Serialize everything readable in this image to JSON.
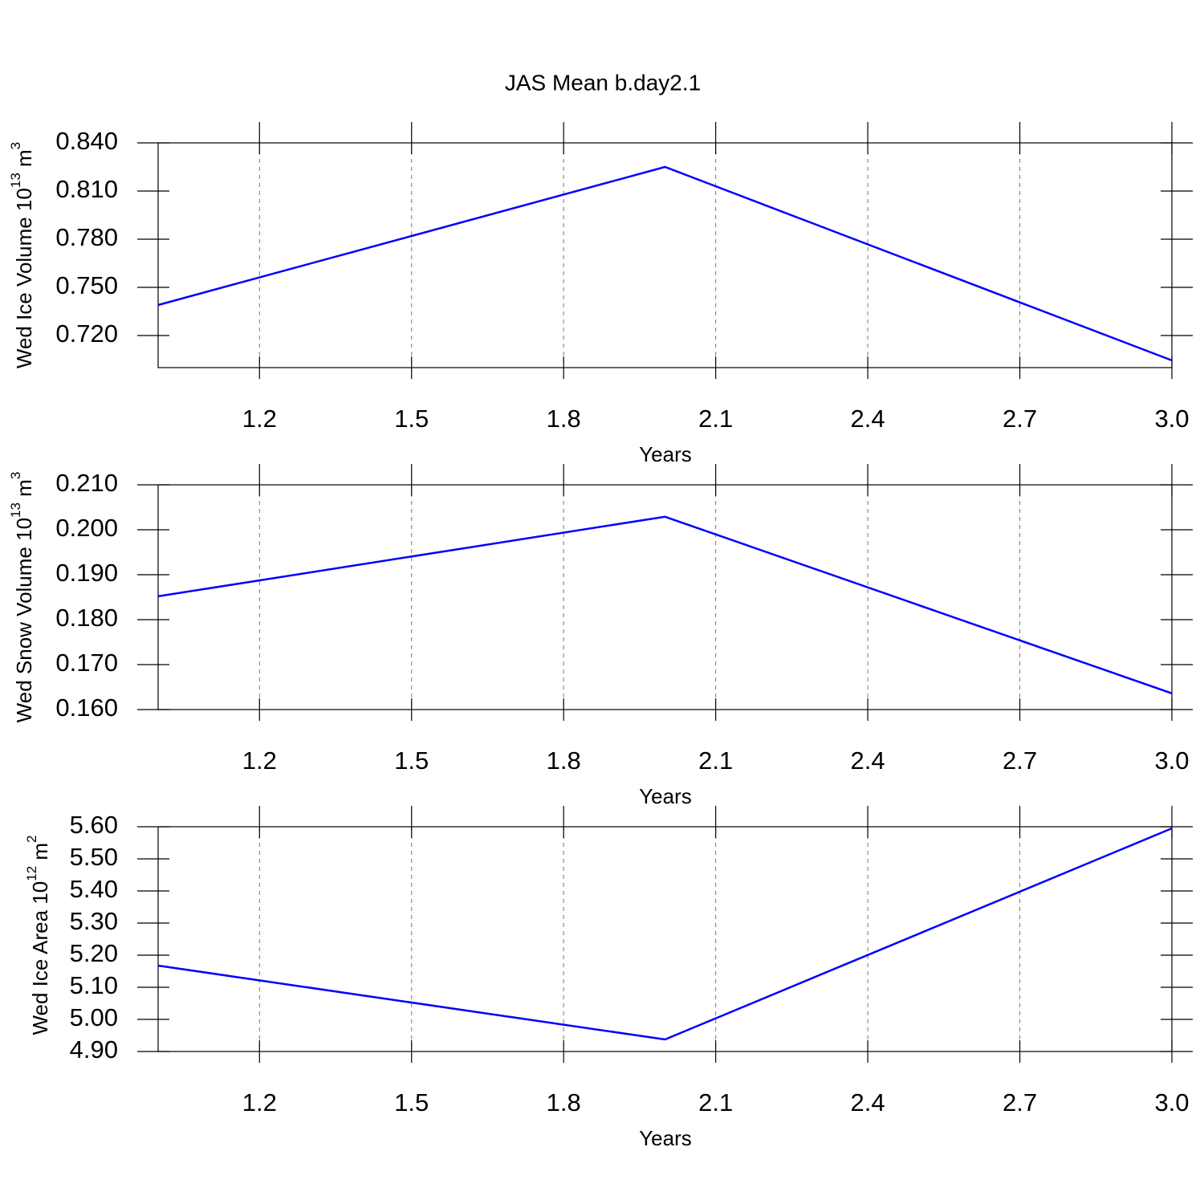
{
  "chart_data": [
    {
      "type": "line",
      "title": "JAS Mean b.day2.1",
      "xlabel": "Years",
      "ylabel": [
        "Wed Ice Volume 10",
        "13",
        " m",
        "3"
      ],
      "x": [
        1,
        2,
        3
      ],
      "values": [
        0.739,
        0.825,
        0.7045
      ],
      "color": "#0000ff",
      "xlim": [
        1,
        3
      ],
      "xticks": [
        1.2,
        1.5,
        1.8,
        2.1,
        2.4,
        2.7,
        {
          "value": 3,
          "label": "3.0"
        }
      ],
      "ylim": [
        0.7,
        0.84
      ],
      "yticks": [
        {
          "value": 0.72,
          "label": "0.720"
        },
        {
          "value": 0.75,
          "label": "0.750"
        },
        {
          "value": 0.78,
          "label": "0.780"
        },
        {
          "value": 0.81,
          "label": "0.810"
        },
        {
          "value": 0.84,
          "label": "0.840"
        }
      ],
      "xgrid": true
    },
    {
      "type": "line",
      "xlabel": "Years",
      "ylabel": [
        "Wed Snow Volume 10",
        "13",
        " m",
        "3"
      ],
      "x": [
        1,
        2,
        3
      ],
      "values": [
        0.1852,
        0.2029,
        0.1636
      ],
      "color": "#0000ff",
      "xlim": [
        1,
        3
      ],
      "xticks": [
        1.2,
        1.5,
        1.8,
        2.1,
        2.4,
        2.7,
        {
          "value": 3,
          "label": "3.0"
        }
      ],
      "ylim": [
        0.16,
        0.21
      ],
      "yticks": [
        {
          "value": 0.16,
          "label": "0.160"
        },
        {
          "value": 0.17,
          "label": "0.170"
        },
        {
          "value": 0.18,
          "label": "0.180"
        },
        {
          "value": 0.19,
          "label": "0.190"
        },
        {
          "value": 0.2,
          "label": "0.200"
        },
        {
          "value": 0.21,
          "label": "0.210"
        }
      ],
      "xgrid": true
    },
    {
      "type": "line",
      "xlabel": "Years",
      "ylabel": [
        "Wed Ice Area 10",
        "12",
        " m",
        "2"
      ],
      "x": [
        1,
        2,
        3
      ],
      "values": [
        5.1675,
        4.9375,
        5.595
      ],
      "color": "#0000ff",
      "xlim": [
        1,
        3
      ],
      "xticks": [
        1.2,
        1.5,
        1.8,
        2.1,
        2.4,
        2.7,
        {
          "value": 3,
          "label": "3.0"
        }
      ],
      "ylim": [
        4.9,
        5.6
      ],
      "yticks": [
        {
          "value": 4.9,
          "label": "4.90"
        },
        {
          "value": 5.0,
          "label": "5.00"
        },
        {
          "value": 5.1,
          "label": "5.10"
        },
        {
          "value": 5.2,
          "label": "5.20"
        },
        {
          "value": 5.3,
          "label": "5.30"
        },
        {
          "value": 5.4,
          "label": "5.40"
        },
        {
          "value": 5.5,
          "label": "5.50"
        },
        {
          "value": 5.6,
          "label": "5.60"
        }
      ],
      "xgrid": true
    }
  ]
}
